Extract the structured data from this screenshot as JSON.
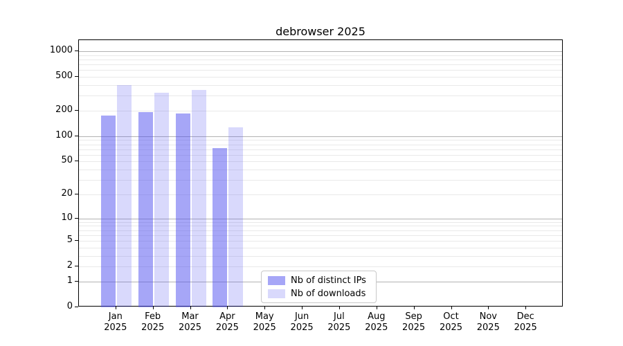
{
  "chart_data": {
    "type": "bar",
    "title": "debrowser 2025",
    "xlabel": "",
    "ylabel": "",
    "yscale": "log1p",
    "grid": "on",
    "legend_position": "bottom-center",
    "year": "2025",
    "categories": [
      "Jan",
      "Feb",
      "Mar",
      "Apr",
      "May",
      "Jun",
      "Jul",
      "Aug",
      "Sep",
      "Oct",
      "Nov",
      "Dec"
    ],
    "y_ticks": [
      0,
      1,
      2,
      5,
      10,
      20,
      50,
      100,
      200,
      500,
      1000
    ],
    "ylim": [
      0,
      1350
    ],
    "series": [
      {
        "name": "Nb of distinct IPs",
        "color": "#5050F082",
        "values": [
          174,
          194,
          187,
          72,
          null,
          null,
          null,
          null,
          null,
          null,
          null,
          null
        ]
      },
      {
        "name": "Nb of downloads",
        "color": "#5050F038",
        "values": [
          397,
          328,
          351,
          127,
          null,
          null,
          null,
          null,
          null,
          null,
          null,
          null
        ]
      }
    ]
  }
}
